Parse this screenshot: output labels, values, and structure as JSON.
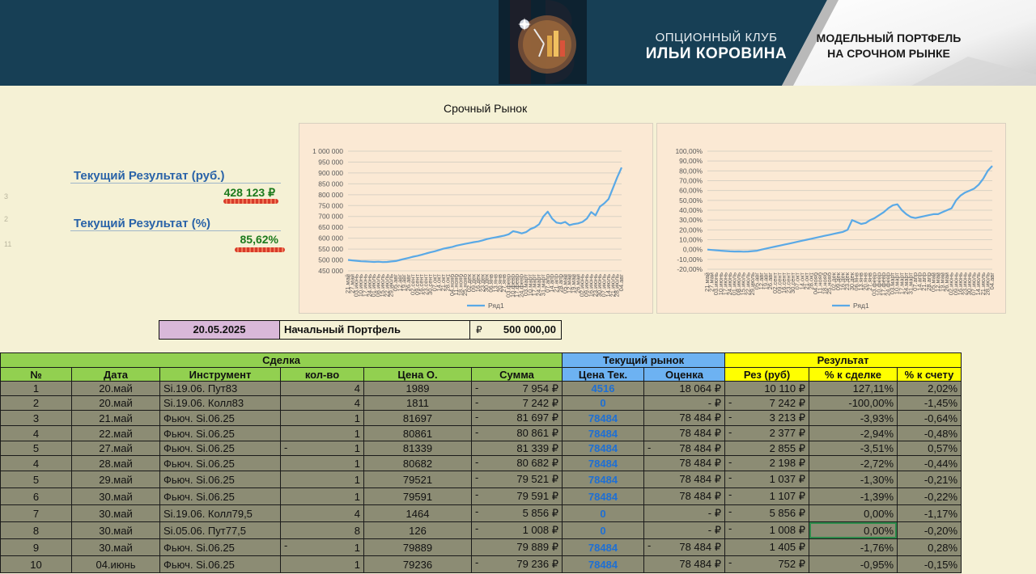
{
  "header": {
    "club_line1": "ОПЦИОННЫЙ КЛУБ",
    "club_line2": "ИЛЬИ КОРОВИНА",
    "badge_line1": "МОДЕЛЬНЫЙ ПОРТФЕЛЬ",
    "badge_line2": "НА СРОЧНОМ РЫНКЕ"
  },
  "summary": {
    "row_numbers": [
      "3",
      "2",
      "11"
    ],
    "result_rub_label": "Текущий Результат (руб.)",
    "result_rub_value": "428 123 ₽",
    "result_pct_label": "Текущий Результат (%)",
    "result_pct_value": "85,62%"
  },
  "section_title": "Срочный Рынок",
  "chart_data": [
    {
      "type": "line",
      "y_ticks": [
        "1 000 000",
        "950 000",
        "900 000",
        "850 000",
        "800 000",
        "750 000",
        "700 000",
        "650 000",
        "600 000",
        "550 000",
        "500 000",
        "450 000"
      ],
      "ylim": [
        450000,
        1000000
      ],
      "x_tick_labels": [
        "21.май",
        "27.май",
        "03.июнь",
        "10.июнь",
        "17.июнь",
        "24.июнь",
        "01.июль",
        "08.июль",
        "15.июль",
        "22.июль",
        "29.июль",
        "05.авг",
        "12.авг",
        "19.авг",
        "26.авг",
        "02.сент",
        "09.сент",
        "16.сент",
        "23.сент",
        "30.сент",
        "07.окт",
        "14.окт",
        "21.окт",
        "28.окт",
        "04.нояб",
        "11.нояб",
        "18.нояб",
        "25.нояб",
        "02.дек",
        "09.дек",
        "16.дек",
        "23.дек",
        "30.дек",
        "06.янв",
        "13.янв",
        "20.янв",
        "27.янв",
        "03.февр",
        "10.февр",
        "17.февр",
        "24.февр",
        "03.март",
        "10.март",
        "17.март",
        "24.март",
        "31.март",
        "07.апр",
        "14.апр",
        "21.апр",
        "28.апр",
        "05.май",
        "12.май",
        "19.май",
        "26.май",
        "02.июнь",
        "09.июнь",
        "16.июнь",
        "23.июнь",
        "30.июнь",
        "07.июль",
        "14.июль",
        "21.июль",
        "28.июль",
        "04.авг"
      ],
      "series": [
        {
          "name": "Ряд1",
          "values": [
            500000,
            498000,
            496000,
            494000,
            493000,
            492000,
            491000,
            492000,
            490000,
            491000,
            493000,
            495000,
            500000,
            505000,
            510000,
            515000,
            519000,
            524000,
            530000,
            535000,
            540000,
            546000,
            552000,
            556000,
            560000,
            566000,
            570000,
            574000,
            578000,
            582000,
            585000,
            590000,
            596000,
            600000,
            604000,
            608000,
            612000,
            618000,
            632000,
            628000,
            622000,
            628000,
            642000,
            650000,
            664000,
            700000,
            722000,
            690000,
            672000,
            668000,
            675000,
            660000,
            665000,
            668000,
            675000,
            690000,
            720000,
            705000,
            745000,
            760000,
            780000,
            830000,
            880000,
            925000
          ]
        }
      ],
      "legend": "bottom",
      "grid": true
    },
    {
      "type": "line",
      "y_ticks": [
        "100,00%",
        "90,00%",
        "80,00%",
        "70,00%",
        "60,00%",
        "50,00%",
        "40,00%",
        "30,00%",
        "20,00%",
        "10,00%",
        "0,00%",
        "-10,00%",
        "-20,00%"
      ],
      "ylim": [
        -20,
        100
      ],
      "x_tick_labels": [
        "21.май",
        "27.май",
        "03.июнь",
        "10.июнь",
        "17.июнь",
        "24.июнь",
        "01.июль",
        "08.июль",
        "15.июль",
        "22.июль",
        "29.июль",
        "05.авг",
        "12.авг",
        "19.авг",
        "26.авг",
        "02.сент",
        "09.сент",
        "16.сент",
        "23.сент",
        "30.сент",
        "07.окт",
        "14.окт",
        "21.окт",
        "28.окт",
        "04.нояб",
        "11.нояб",
        "18.нояб",
        "25.нояб",
        "02.дек",
        "09.дек",
        "16.дек",
        "23.дек",
        "30.дек",
        "06.янв",
        "13.янв",
        "20.янв",
        "27.янв",
        "03.февр",
        "10.февр",
        "17.февр",
        "24.февр",
        "03.март",
        "10.март",
        "17.март",
        "24.март",
        "31.март",
        "07.апр",
        "14.апр",
        "21.апр",
        "28.апр",
        "05.май",
        "12.май",
        "19.май",
        "26.май",
        "02.июнь",
        "09.июнь",
        "16.июнь",
        "23.июнь",
        "30.июнь",
        "07.июль",
        "14.июль",
        "21.июль",
        "28.июль",
        "04.авг"
      ],
      "series": [
        {
          "name": "Ряд1",
          "values": [
            0,
            -0.4,
            -0.8,
            -1.2,
            -1.5,
            -1.8,
            -2.0,
            -1.9,
            -2.2,
            -2.0,
            -1.6,
            -1.2,
            0,
            1.0,
            2.0,
            3.0,
            4.0,
            5.0,
            6.0,
            7.0,
            8.0,
            9.0,
            10.0,
            11.0,
            12.0,
            13.0,
            14.0,
            15.0,
            16.0,
            17.0,
            18.0,
            20.0,
            30.0,
            28.0,
            26.0,
            27.0,
            30.0,
            32.0,
            35.0,
            38.0,
            42.0,
            45.0,
            46.0,
            40.0,
            36.0,
            33.0,
            32.0,
            33.0,
            34.0,
            35.0,
            36.0,
            36.0,
            38.0,
            40.0,
            42.0,
            50.0,
            55.0,
            58.0,
            60.0,
            62.0,
            66.0,
            72.0,
            80.0,
            85.0
          ]
        }
      ],
      "legend": "bottom",
      "grid": true
    }
  ],
  "portfolio": {
    "date": "20.05.2025",
    "label": "Начальный Портфель",
    "currency": "₽",
    "amount": "500 000,00"
  },
  "table": {
    "groups": {
      "deal": "Сделка",
      "market": "Текущий рынок",
      "result": "Результат"
    },
    "headers": {
      "num": "№",
      "date": "Дата",
      "instrument": "Инструмент",
      "qty": "кол-во",
      "price": "Цена О.",
      "sum": "Сумма",
      "cur_price": "Цена Тек.",
      "valuation": "Оценка",
      "res_rub": "Рез (руб)",
      "pct_deal": "% к сделке",
      "pct_account": "% к счету"
    },
    "rows": [
      {
        "num": "1",
        "date": "20.май",
        "instrument": "Si.19.06. Пут83",
        "qty_sign": "",
        "qty": "4",
        "price": "1989",
        "sum_sign": "-",
        "sum": "7 954 ₽",
        "cur_price": "4516",
        "val_sign": "",
        "valuation": "18 064 ₽",
        "res_sign": "",
        "res_rub": "10 110 ₽",
        "pct_deal": "127,11%",
        "pct_account": "2,02%"
      },
      {
        "num": "2",
        "date": "20.май",
        "instrument": "Si.19.06. Колл83",
        "qty_sign": "",
        "qty": "4",
        "price": "1811",
        "sum_sign": "-",
        "sum": "7 242 ₽",
        "cur_price": "0",
        "val_sign": "",
        "valuation": "-     ₽",
        "res_sign": "-",
        "res_rub": "7 242 ₽",
        "pct_deal": "-100,00%",
        "pct_account": "-1,45%"
      },
      {
        "num": "3",
        "date": "21.май",
        "instrument": "Фьюч. Si.06.25",
        "qty_sign": "",
        "qty": "1",
        "price": "81697",
        "sum_sign": "-",
        "sum": "81 697 ₽",
        "cur_price": "78484",
        "val_sign": "",
        "valuation": "78 484 ₽",
        "res_sign": "-",
        "res_rub": "3 213 ₽",
        "pct_deal": "-3,93%",
        "pct_account": "-0,64%"
      },
      {
        "num": "4",
        "date": "22.май",
        "instrument": "Фьюч. Si.06.25",
        "qty_sign": "",
        "qty": "1",
        "price": "80861",
        "sum_sign": "-",
        "sum": "80 861 ₽",
        "cur_price": "78484",
        "val_sign": "",
        "valuation": "78 484 ₽",
        "res_sign": "-",
        "res_rub": "2 377 ₽",
        "pct_deal": "-2,94%",
        "pct_account": "-0,48%"
      },
      {
        "num": "5",
        "date": "27.май",
        "instrument": "Фьюч. Si.06.25",
        "qty_sign": "-",
        "qty": "1",
        "price": "81339",
        "sum_sign": "",
        "sum": "81 339 ₽",
        "cur_price": "78484",
        "val_sign": "-",
        "valuation": "78 484 ₽",
        "res_sign": "",
        "res_rub": "2 855 ₽",
        "pct_deal": "-3,51%",
        "pct_account": "0,57%"
      },
      {
        "num": "4",
        "date": "28.май",
        "instrument": "Фьюч. Si.06.25",
        "qty_sign": "",
        "qty": "1",
        "price": "80682",
        "sum_sign": "-",
        "sum": "80 682 ₽",
        "cur_price": "78484",
        "val_sign": "",
        "valuation": "78 484 ₽",
        "res_sign": "-",
        "res_rub": "2 198 ₽",
        "pct_deal": "-2,72%",
        "pct_account": "-0,44%"
      },
      {
        "num": "5",
        "date": "29.май",
        "instrument": "Фьюч. Si.06.25",
        "qty_sign": "",
        "qty": "1",
        "price": "79521",
        "sum_sign": "-",
        "sum": "79 521 ₽",
        "cur_price": "78484",
        "val_sign": "",
        "valuation": "78 484 ₽",
        "res_sign": "-",
        "res_rub": "1 037 ₽",
        "pct_deal": "-1,30%",
        "pct_account": "-0,21%"
      },
      {
        "num": "6",
        "date": "30.май",
        "instrument": "Фьюч. Si.06.25",
        "qty_sign": "",
        "qty": "1",
        "price": "79591",
        "sum_sign": "-",
        "sum": "79 591 ₽",
        "cur_price": "78484",
        "val_sign": "",
        "valuation": "78 484 ₽",
        "res_sign": "-",
        "res_rub": "1 107 ₽",
        "pct_deal": "-1,39%",
        "pct_account": "-0,22%"
      },
      {
        "num": "7",
        "date": "30.май",
        "instrument": "Si.19.06. Колл79,5",
        "qty_sign": "",
        "qty": "4",
        "price": "1464",
        "sum_sign": "-",
        "sum": "5 856 ₽",
        "cur_price": "0",
        "val_sign": "",
        "valuation": "-     ₽",
        "res_sign": "-",
        "res_rub": "5 856 ₽",
        "pct_deal": "0,00%",
        "pct_account": "-1,17%"
      },
      {
        "num": "8",
        "date": "30.май",
        "instrument": "Si.05.06. Пут77,5",
        "qty_sign": "",
        "qty": "8",
        "price": "126",
        "sum_sign": "-",
        "sum": "1 008 ₽",
        "cur_price": "0",
        "val_sign": "",
        "valuation": "-     ₽",
        "res_sign": "-",
        "res_rub": "1 008 ₽",
        "pct_deal": "0,00%",
        "pct_account": "-0,20%"
      },
      {
        "num": "9",
        "date": "30.май",
        "instrument": "Фьюч. Si.06.25",
        "qty_sign": "-",
        "qty": "1",
        "price": "79889",
        "sum_sign": "",
        "sum": "79 889 ₽",
        "cur_price": "78484",
        "val_sign": "-",
        "valuation": "78 484 ₽",
        "res_sign": "",
        "res_rub": "1 405 ₽",
        "pct_deal": "-1,76%",
        "pct_account": "0,28%"
      },
      {
        "num": "10",
        "date": "04.июнь",
        "instrument": "Фьюч. Si.06.25",
        "qty_sign": "",
        "qty": "1",
        "price": "79236",
        "sum_sign": "-",
        "sum": "79 236 ₽",
        "cur_price": "78484",
        "val_sign": "",
        "valuation": "78 484 ₽",
        "res_sign": "-",
        "res_rub": "752 ₽",
        "pct_deal": "-0,95%",
        "pct_account": "-0,15%"
      }
    ]
  },
  "colors": {
    "banner": "#173f55",
    "sheet_bg": "#f5f1d5",
    "row_bg": "#8c8c74",
    "group_green": "#92d050",
    "group_blue": "#6db2f2",
    "group_yellow": "#ffff00",
    "portfolio_pink": "#d9b8d9",
    "series_line": "#5aa9e6",
    "label_blue": "#2a63a8",
    "value_green": "#1c7a1c",
    "price_blue": "#1e6fd4"
  }
}
